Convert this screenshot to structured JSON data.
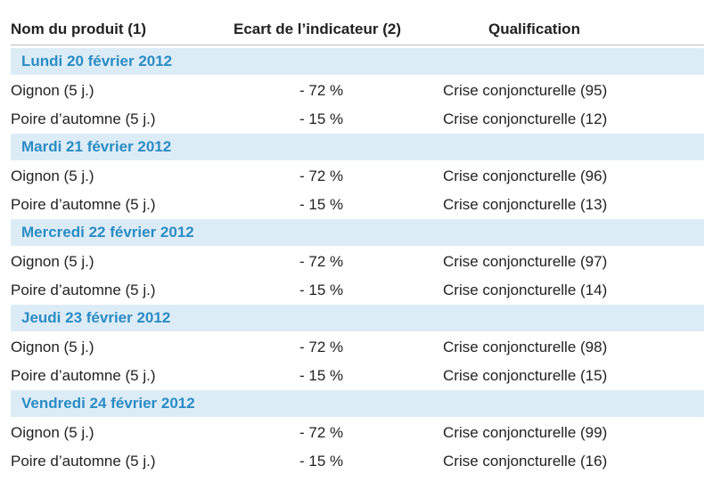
{
  "header": {
    "columns": [
      "Nom du produit (1)",
      "Ecart de l’indicateur (2)",
      "Qualification"
    ]
  },
  "groups": [
    {
      "date": "Lundi 20 février 2012",
      "rows": [
        [
          "Oignon (5 j.)",
          "- 72 %",
          "Crise conjoncturelle (95)"
        ],
        [
          "Poire d’automne (5 j.)",
          "- 15 %",
          "Crise conjoncturelle (12)"
        ]
      ]
    },
    {
      "date": "Mardi 21 février 2012",
      "rows": [
        [
          "Oignon (5 j.)",
          "- 72 %",
          "Crise conjoncturelle (96)"
        ],
        [
          "Poire d’automne (5 j.)",
          "- 15 %",
          "Crise conjoncturelle (13)"
        ]
      ]
    },
    {
      "date": "Mercredi 22 février 2012",
      "rows": [
        [
          "Oignon (5 j.)",
          "- 72 %",
          "Crise conjoncturelle (97)"
        ],
        [
          "Poire d’automne (5 j.)",
          "- 15 %",
          "Crise conjoncturelle (14)"
        ]
      ]
    },
    {
      "date": "Jeudi 23 février 2012",
      "rows": [
        [
          "Oignon (5 j.)",
          "- 72 %",
          "Crise conjoncturelle (98)"
        ],
        [
          "Poire d’automne (5 j.)",
          "- 15 %",
          "Crise conjoncturelle (15)"
        ]
      ]
    },
    {
      "date": "Vendredi 24 février 2012",
      "rows": [
        [
          "Oignon (5 j.)",
          "- 72 %",
          "Crise conjoncturelle (99)"
        ],
        [
          "Poire d’automne (5 j.)",
          "- 15 %",
          "Crise conjoncturelle (16)"
        ]
      ]
    }
  ]
}
